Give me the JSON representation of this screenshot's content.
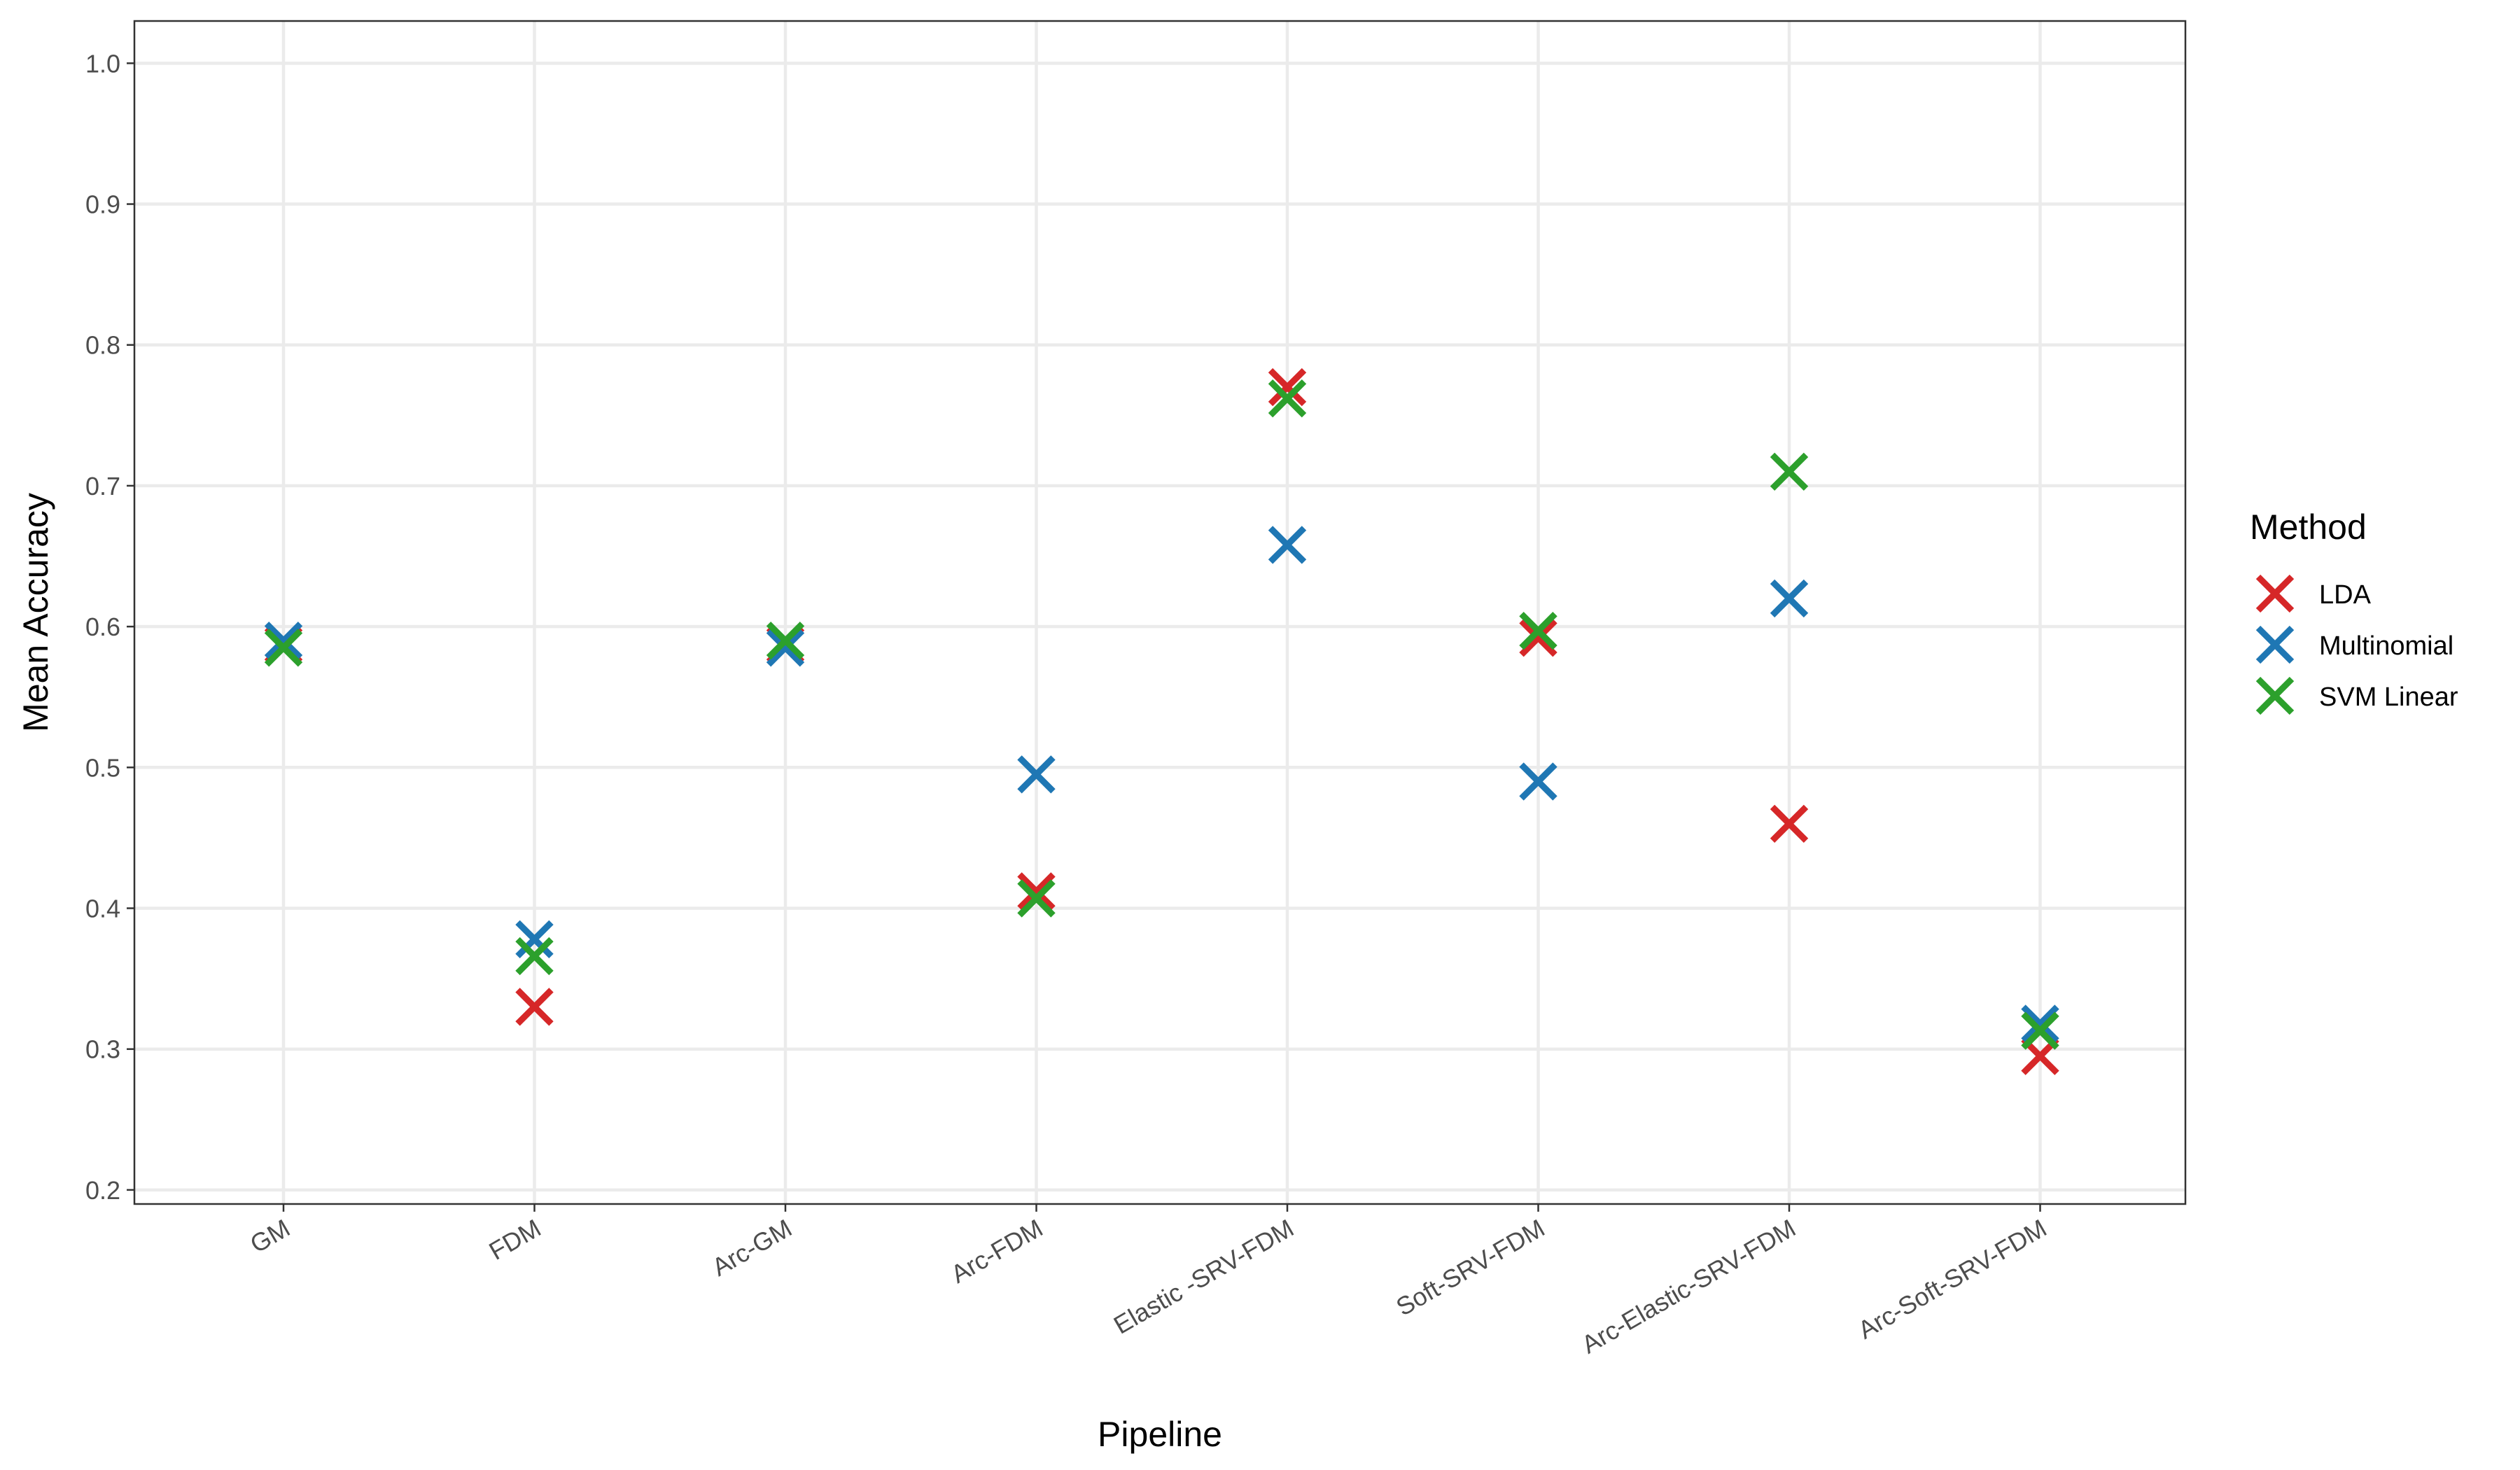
{
  "chart_data": {
    "type": "scatter",
    "xlabel": "Pipeline",
    "ylabel": "Mean Accuracy",
    "categories": [
      "GM",
      "FDM",
      "Arc-GM",
      "Arc-FDM",
      "Elastic -SRV-FDM",
      "Soft-SRV-FDM",
      "Arc-Elastic-SRV-FDM",
      "Arc-Soft-SRV-FDM"
    ],
    "ylim": [
      0.19,
      1.03
    ],
    "yticks": [
      "0.2",
      "0.3",
      "0.4",
      "0.5",
      "0.6",
      "0.7",
      "0.8",
      "0.9",
      "1.0"
    ],
    "grid": true,
    "marker": "x",
    "legend": {
      "title": "Method",
      "placement": "right"
    },
    "series": [
      {
        "name": "LDA",
        "color": "#d62728",
        "values": [
          0.587,
          0.33,
          0.587,
          0.412,
          0.77,
          0.592,
          0.46,
          0.295
        ]
      },
      {
        "name": "Multinomial",
        "color": "#1f77b4",
        "values": [
          0.59,
          0.378,
          0.585,
          0.495,
          0.658,
          0.49,
          0.62,
          0.318
        ]
      },
      {
        "name": "SVM Linear",
        "color": "#2ca02c",
        "values": [
          0.585,
          0.366,
          0.59,
          0.407,
          0.762,
          0.597,
          0.71,
          0.313
        ]
      }
    ]
  }
}
